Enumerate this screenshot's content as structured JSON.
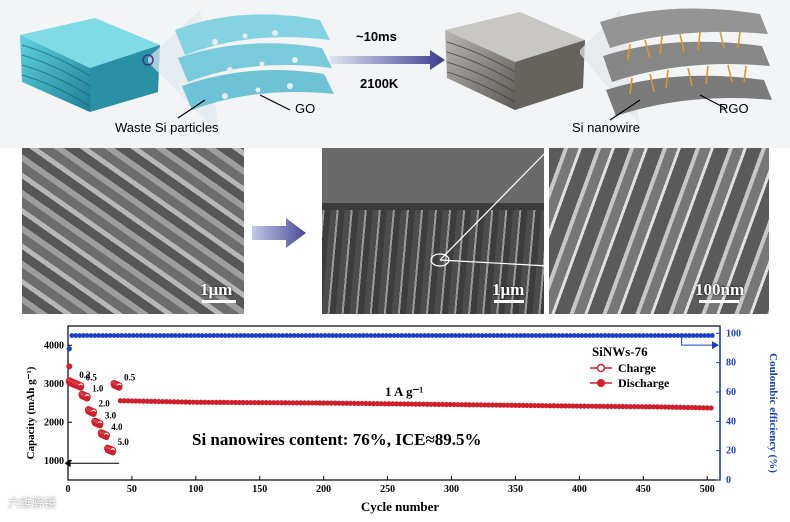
{
  "schematic": {
    "label_waste_si": "Waste Si particles",
    "label_go": "GO",
    "label_time": "~10ms",
    "label_temp": "2100K",
    "label_si_nanowire": "Si nanowire",
    "label_rgo": "RGO"
  },
  "sem": {
    "scale_1": "1μm",
    "scale_2": "1μm",
    "scale_3": "100nm"
  },
  "chart_data": {
    "type": "scatter",
    "xlabel": "Cycle number",
    "ylabel_left": "Capacity (mAh g⁻¹)",
    "ylabel_right": "Coulombic efficiency (%)",
    "xlim": [
      0,
      510
    ],
    "ylim_left": [
      500,
      4500
    ],
    "ylim_right": [
      0,
      105
    ],
    "xticks": [
      0,
      50,
      100,
      150,
      200,
      250,
      300,
      350,
      400,
      450,
      500
    ],
    "yticks_left": [
      1000,
      2000,
      3000,
      4000
    ],
    "yticks_right": [
      0,
      20,
      40,
      60,
      80,
      100
    ],
    "legend_title": "SiNWs-76",
    "legend": [
      "Charge",
      "Discharge"
    ],
    "annotation_rate": "1 A g⁻¹",
    "annotation_content": "Si nanowires content: 76%, ICE≈89.5%",
    "rate_labels": [
      "0.2",
      "0.5",
      "1.0",
      "2.0",
      "3.0",
      "4.0",
      "5.0",
      "0.5"
    ],
    "rate_steps": [
      {
        "label": "0.2",
        "cycles": [
          1,
          5
        ],
        "capacity": 3050
      },
      {
        "label": "0.5",
        "cycles": [
          6,
          10
        ],
        "capacity": 2980
      },
      {
        "label": "1.0",
        "cycles": [
          11,
          15
        ],
        "capacity": 2700
      },
      {
        "label": "2.0",
        "cycles": [
          16,
          20
        ],
        "capacity": 2300
      },
      {
        "label": "3.0",
        "cycles": [
          21,
          25
        ],
        "capacity": 2000
      },
      {
        "label": "4.0",
        "cycles": [
          26,
          30
        ],
        "capacity": 1700
      },
      {
        "label": "5.0",
        "cycles": [
          31,
          35
        ],
        "capacity": 1300
      },
      {
        "label": "0.5",
        "cycles": [
          36,
          40
        ],
        "capacity": 2980
      }
    ],
    "first_discharge": 3450,
    "long_cycle": [
      {
        "cycle": 41,
        "capacity": 2560
      },
      {
        "cycle": 100,
        "capacity": 2520
      },
      {
        "cycle": 200,
        "capacity": 2500
      },
      {
        "cycle": 300,
        "capacity": 2460
      },
      {
        "cycle": 400,
        "capacity": 2420
      },
      {
        "cycle": 460,
        "capacity": 2400
      },
      {
        "cycle": 505,
        "capacity": 2370
      }
    ],
    "coulombic_efficiency": {
      "first": 89.5,
      "stable": 98.5
    },
    "colors": {
      "capacity": "#d11f2a",
      "ce": "#1b3fc4",
      "axis_right": "#1b3fc4"
    }
  },
  "watermark": "六维驿镜"
}
